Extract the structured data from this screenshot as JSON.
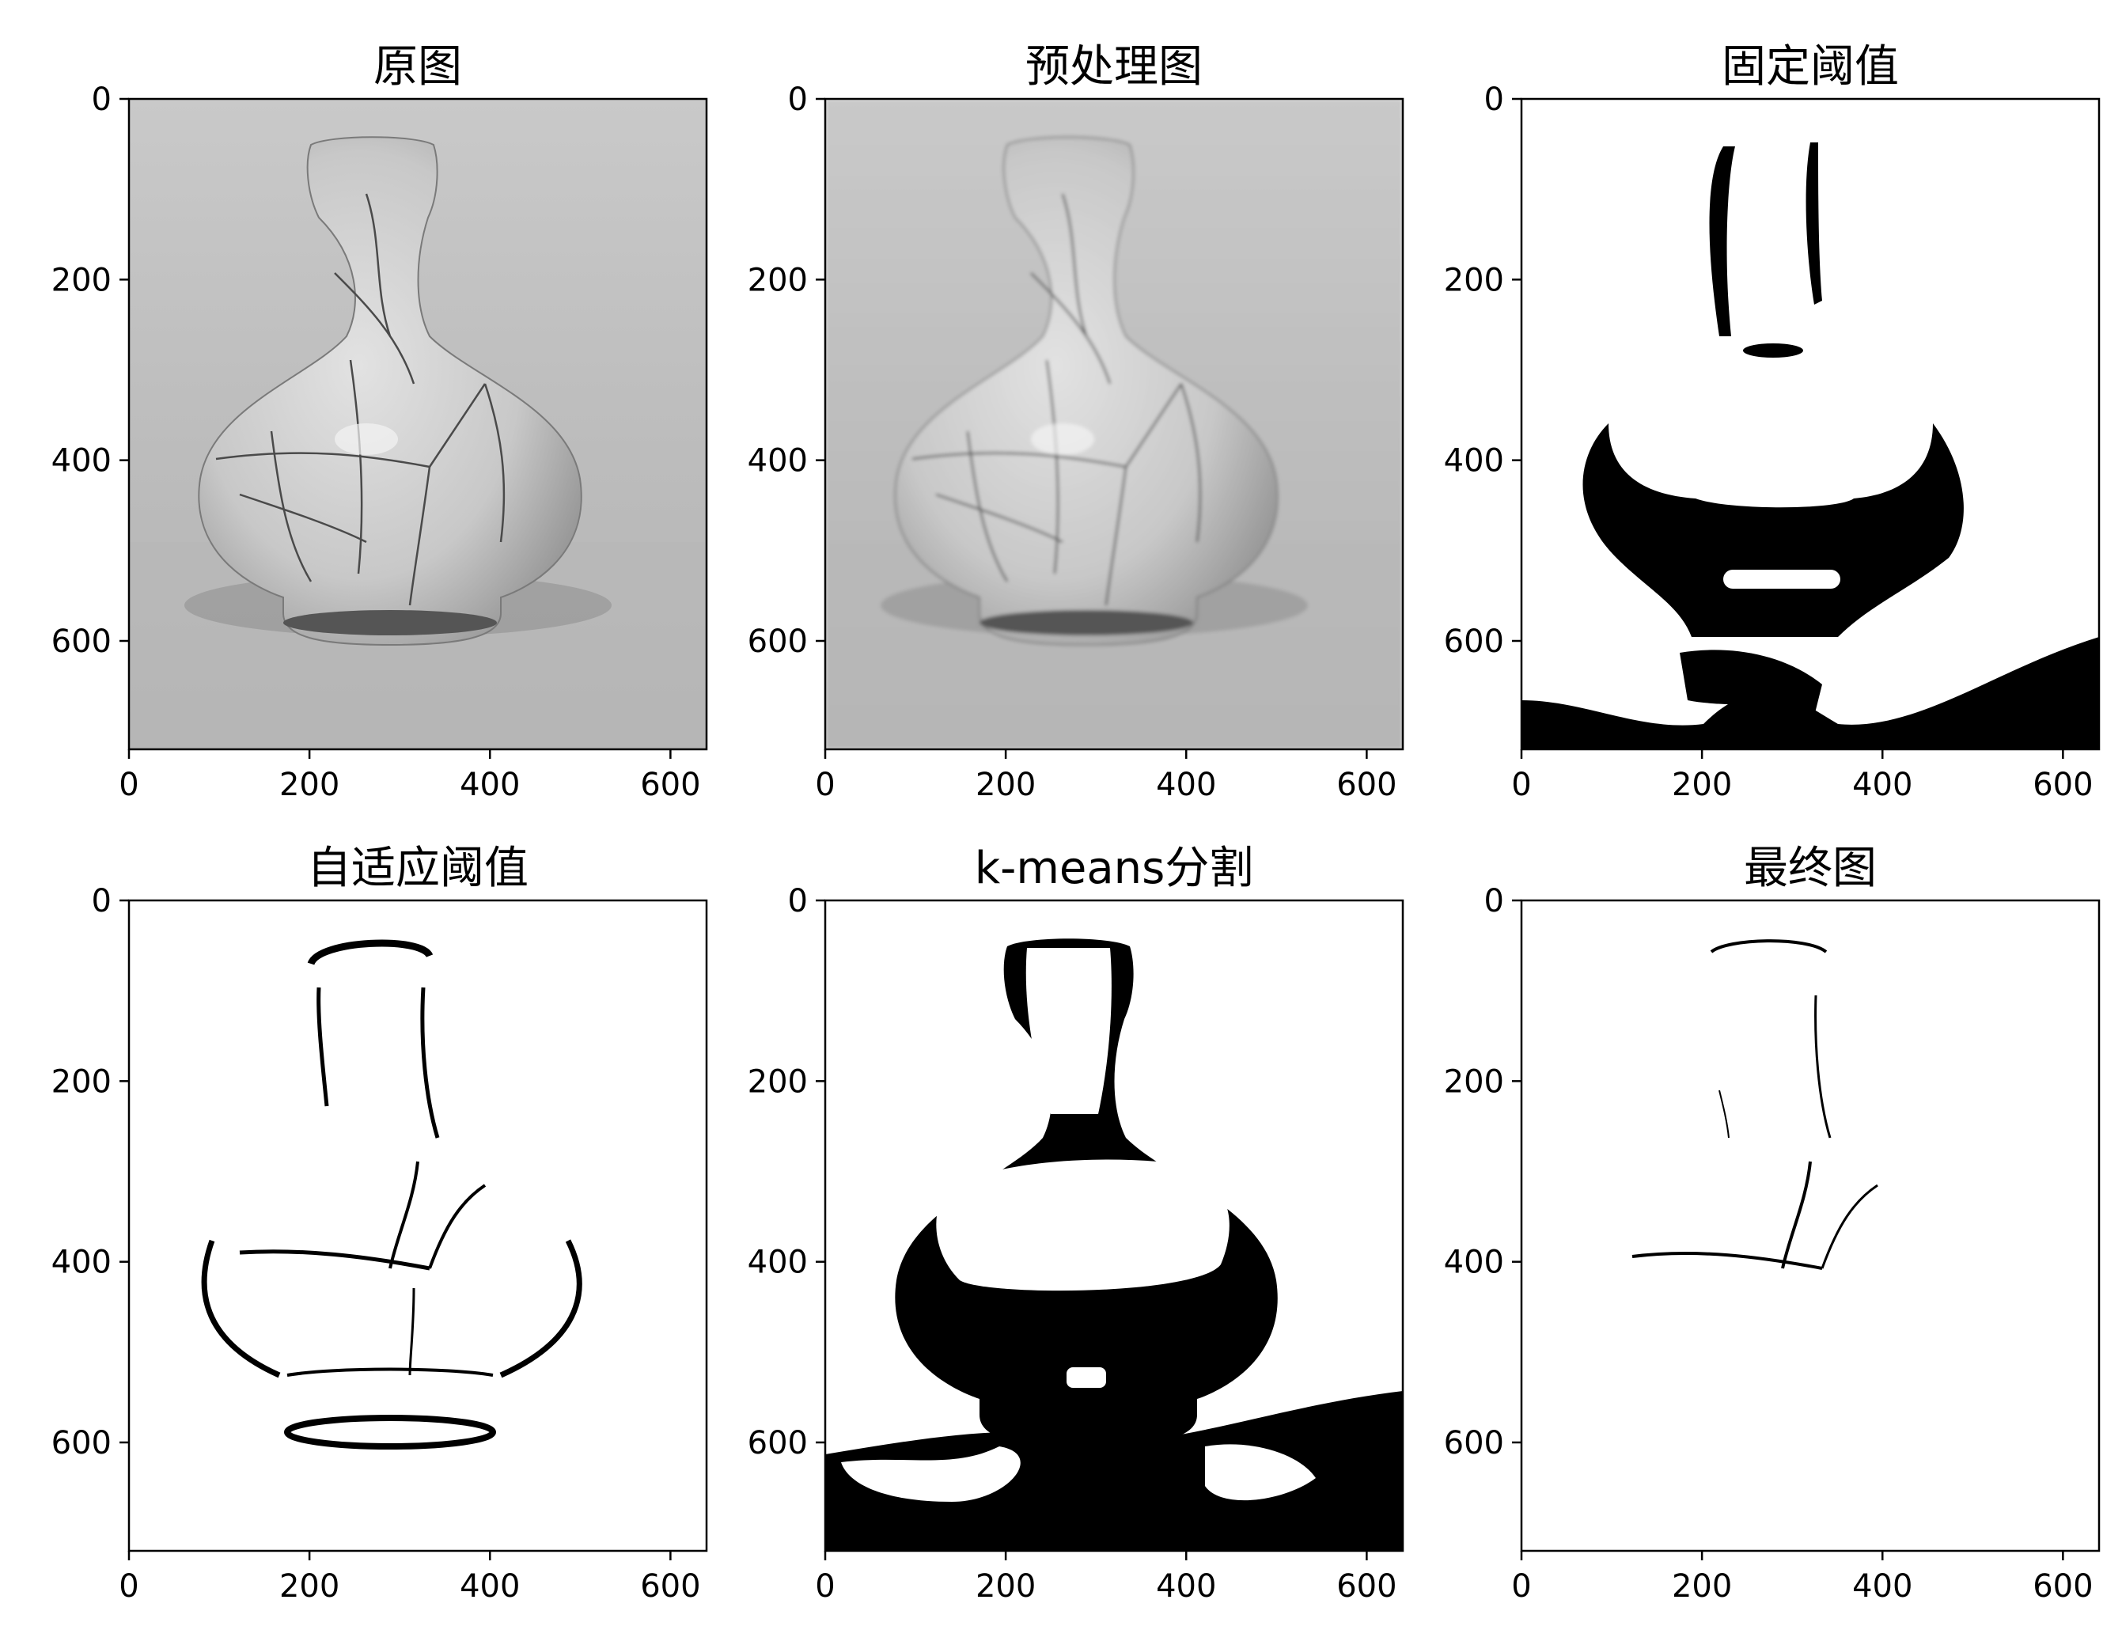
{
  "figure": {
    "panels": [
      {
        "title": "原图",
        "kind": "gray"
      },
      {
        "title": "预处理图",
        "kind": "gray-blur"
      },
      {
        "title": "固定阈值",
        "kind": "fixed"
      },
      {
        "title": "自适应阈值",
        "kind": "adaptive"
      },
      {
        "title": "k-means分割",
        "kind": "kmeans"
      },
      {
        "title": "最终图",
        "kind": "final"
      }
    ],
    "x_ticks": [
      "0",
      "200",
      "400",
      "600"
    ],
    "y_ticks": [
      "0",
      "200",
      "400",
      "600"
    ],
    "x_tick_values": [
      0,
      200,
      400,
      600
    ],
    "y_tick_values": [
      0,
      200,
      400,
      600
    ],
    "x_range": [
      0,
      640
    ],
    "y_range": [
      0,
      720
    ]
  },
  "colors": {
    "background_gray": "#bdbdbd",
    "vase_gray": "#cfcfcf",
    "black": "#000000",
    "white": "#ffffff"
  }
}
